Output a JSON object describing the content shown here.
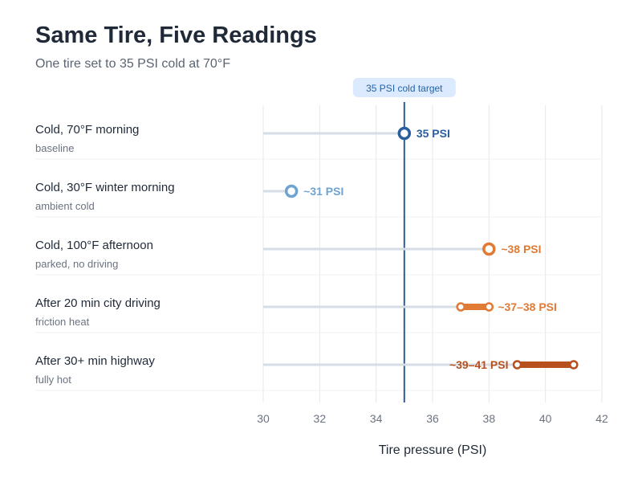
{
  "chart_data": {
    "type": "dot-range",
    "title": "Same Tire, Five Readings",
    "subtitle": "One tire set to 35 PSI cold at 70°F",
    "xlabel": "Tire pressure (PSI)",
    "xlim": [
      30,
      42
    ],
    "ticks": [
      30,
      32,
      34,
      36,
      38,
      40,
      42
    ],
    "grid": true,
    "reference": {
      "value": 35,
      "label": "35 PSI cold target",
      "color": "#2a5f9e"
    },
    "rows": [
      {
        "label": "Cold, 70°F morning",
        "sublabel": "baseline",
        "low": 35,
        "high": 35,
        "value_label": "35 PSI",
        "color": "#2a5f9e",
        "label_side": "right"
      },
      {
        "label": "Cold, 30°F winter morning",
        "sublabel": "ambient cold",
        "low": 31,
        "high": 31,
        "value_label": "~31 PSI",
        "color": "#6fa3d2",
        "label_side": "right"
      },
      {
        "label": "Cold, 100°F afternoon",
        "sublabel": "parked, no driving",
        "low": 38,
        "high": 38,
        "value_label": "~38 PSI",
        "color": "#e07a35",
        "label_side": "right"
      },
      {
        "label": "After 20 min city driving",
        "sublabel": "friction heat",
        "low": 37,
        "high": 38,
        "value_label": "~37–38 PSI",
        "color": "#e07a35",
        "label_side": "right"
      },
      {
        "label": "After 30+ min highway",
        "sublabel": "fully hot",
        "low": 39,
        "high": 41,
        "value_label": "~39–41 PSI",
        "color": "#b8501e",
        "label_side": "left"
      }
    ]
  }
}
